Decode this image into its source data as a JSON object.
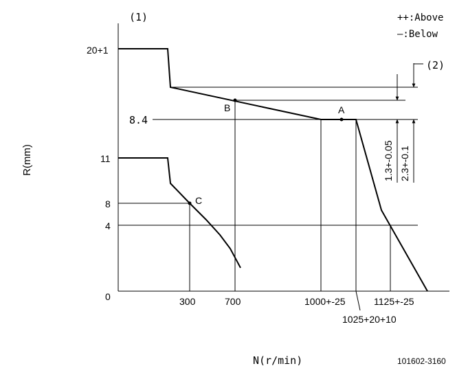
{
  "labels": {
    "tag_1": "(1)",
    "tag_2": "(2)",
    "legend_above": "++:Above",
    "legend_below": "—:Below",
    "y_axis": "R(mm)",
    "x_axis": "N(r/min)",
    "drawing_number": "101602-3160"
  },
  "y_ticks": [
    "20+1",
    "8.4",
    "11",
    "8",
    "4",
    "0"
  ],
  "x_ticks": [
    "300",
    "700",
    "1000+-25",
    "1125+-25",
    "1025+20+10"
  ],
  "points": {
    "a": "A",
    "b": "B",
    "c": "C"
  },
  "dimensions": {
    "d1": "1.3+-0.05",
    "d2": "2.3+-0.1"
  }
}
